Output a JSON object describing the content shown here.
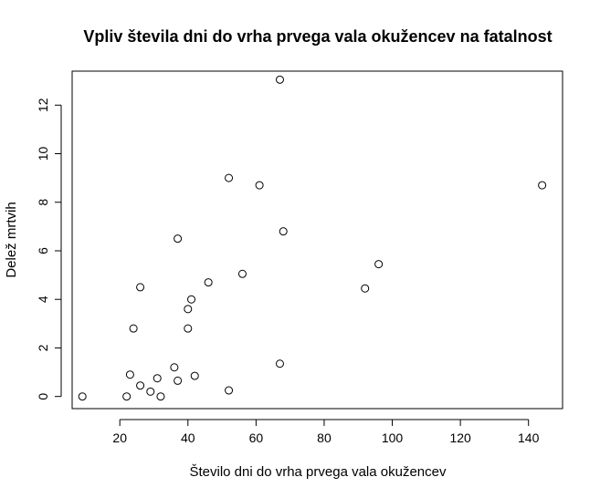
{
  "chart_data": {
    "type": "scatter",
    "title": "Vpliv števila dni do vrha prvega vala okužencev na fatalnost",
    "xlabel": "Število dni do vrha prvega vala okužencev",
    "ylabel": "Delež mrtvih",
    "xlim": [
      6,
      150
    ],
    "ylim": [
      -0.5,
      13.4
    ],
    "xticks": [
      20,
      40,
      60,
      80,
      100,
      120,
      140
    ],
    "yticks": [
      0,
      2,
      4,
      6,
      8,
      10,
      12
    ],
    "grid": false,
    "legend": "none",
    "marker": "open-circle",
    "points": [
      {
        "x": 9,
        "y": 0.0
      },
      {
        "x": 22,
        "y": 0.0
      },
      {
        "x": 23,
        "y": 0.9
      },
      {
        "x": 24,
        "y": 2.8
      },
      {
        "x": 26,
        "y": 4.5
      },
      {
        "x": 26,
        "y": 0.45
      },
      {
        "x": 29,
        "y": 0.2
      },
      {
        "x": 31,
        "y": 0.75
      },
      {
        "x": 32,
        "y": 0.0
      },
      {
        "x": 36,
        "y": 1.2
      },
      {
        "x": 37,
        "y": 6.5
      },
      {
        "x": 37,
        "y": 0.65
      },
      {
        "x": 40,
        "y": 3.6
      },
      {
        "x": 40,
        "y": 2.8
      },
      {
        "x": 41,
        "y": 4.0
      },
      {
        "x": 42,
        "y": 0.85
      },
      {
        "x": 46,
        "y": 4.7
      },
      {
        "x": 52,
        "y": 9.0
      },
      {
        "x": 52,
        "y": 0.25
      },
      {
        "x": 56,
        "y": 5.05
      },
      {
        "x": 61,
        "y": 8.7
      },
      {
        "x": 67,
        "y": 13.05
      },
      {
        "x": 67,
        "y": 1.35
      },
      {
        "x": 68,
        "y": 6.8
      },
      {
        "x": 92,
        "y": 4.45
      },
      {
        "x": 96,
        "y": 5.45
      },
      {
        "x": 144,
        "y": 8.7
      }
    ]
  }
}
